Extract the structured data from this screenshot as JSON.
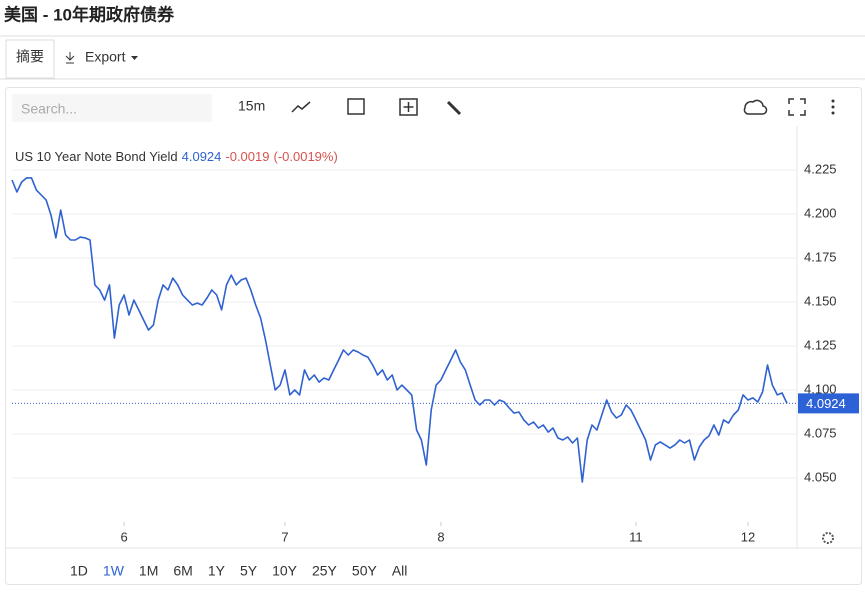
{
  "page": {
    "title": "美国 - 10年期政府债券",
    "tabs": [
      "摘要",
      "Export"
    ],
    "search_placeholder": "Search...",
    "interval": "15m",
    "ranges": [
      "1D",
      "1W",
      "1M",
      "6M",
      "1Y",
      "5Y",
      "10Y",
      "25Y",
      "50Y",
      "All"
    ],
    "active_range": "1W"
  },
  "chart_data": {
    "type": "line",
    "series": [
      {
        "name": "US 10 Year Note Bond Yield",
        "color": "#2f62d0",
        "values": [
          4.2193,
          4.2125,
          4.2182,
          4.2205,
          4.2205,
          4.2136,
          4.2108,
          4.208,
          4.1994,
          4.1864,
          4.2023,
          4.1881,
          4.1852,
          4.1852,
          4.1869,
          4.1864,
          4.1852,
          4.1597,
          4.1568,
          4.1511,
          4.1597,
          4.1295,
          4.1483,
          4.154,
          4.1426,
          4.1511,
          4.1455,
          4.1398,
          4.1341,
          4.1369,
          4.1511,
          4.1597,
          4.1568,
          4.1636,
          4.1597,
          4.154,
          4.1511,
          4.1483,
          4.1494,
          4.1483,
          4.1523,
          4.1568,
          4.154,
          4.1455,
          4.1597,
          4.1653,
          4.1597,
          4.1625,
          4.1636,
          4.1568,
          4.1483,
          4.1409,
          4.1284,
          4.1142,
          4.1,
          4.1028,
          4.1114,
          4.0972,
          4.1,
          4.0972,
          4.1114,
          4.1057,
          4.1085,
          4.1045,
          4.1068,
          4.1057,
          4.1114,
          4.117,
          4.1227,
          4.1199,
          4.1227,
          4.1216,
          4.1199,
          4.1187,
          4.1142,
          4.1085,
          4.1114,
          4.1057,
          4.1085,
          4.1,
          4.1028,
          4.1,
          4.0972,
          4.0773,
          4.0716,
          4.0574,
          4.0886,
          4.1028,
          4.1057,
          4.1114,
          4.117,
          4.1227,
          4.1159,
          4.1114,
          4.1028,
          4.0943,
          4.0915,
          4.0943,
          4.0943,
          4.0915,
          4.0943,
          4.0932,
          4.0898,
          4.0869,
          4.0875,
          4.083,
          4.0801,
          4.0818,
          4.0784,
          4.0801,
          4.0761,
          4.0784,
          4.0727,
          4.0716,
          4.0733,
          4.0699,
          4.0727,
          4.0477,
          4.0716,
          4.0801,
          4.0773,
          4.0858,
          4.0943,
          4.0875,
          4.0841,
          4.0858,
          4.0915,
          4.0886,
          4.083,
          4.0773,
          4.0716,
          4.0602,
          4.0688,
          4.0705,
          4.0688,
          4.067,
          4.0688,
          4.0716,
          4.0699,
          4.0716,
          4.0602,
          4.0676,
          4.0716,
          4.0739,
          4.0801,
          4.0744,
          4.083,
          4.0812,
          4.0858,
          4.0886,
          4.0972,
          4.0943,
          4.0955,
          4.0932,
          4.0989,
          4.1142,
          4.1028,
          4.0972,
          4.0983,
          4.0924
        ]
      }
    ],
    "last": 4.0924,
    "change": -0.0019,
    "change_percent": -0.0019,
    "change_percent_label": "(-0.0019%)",
    "ylim": [
      4.025,
      4.25
    ],
    "yticks": [
      {
        "value": 4.05,
        "label": "4.050"
      },
      4.075,
      {
        "value": 4.1,
        "label": "4.100"
      },
      4.125,
      {
        "value": 4.15,
        "label": "4.150"
      },
      4.175,
      {
        "value": 4.2,
        "label": "4.200"
      },
      4.225
    ],
    "xticks": [
      {
        "value": 23,
        "label": "6"
      },
      {
        "value": 56,
        "label": "7"
      },
      {
        "value": 88,
        "label": "8"
      },
      {
        "value": 128,
        "label": "11"
      },
      {
        "value": 151,
        "label": "12"
      }
    ],
    "grid": true
  }
}
